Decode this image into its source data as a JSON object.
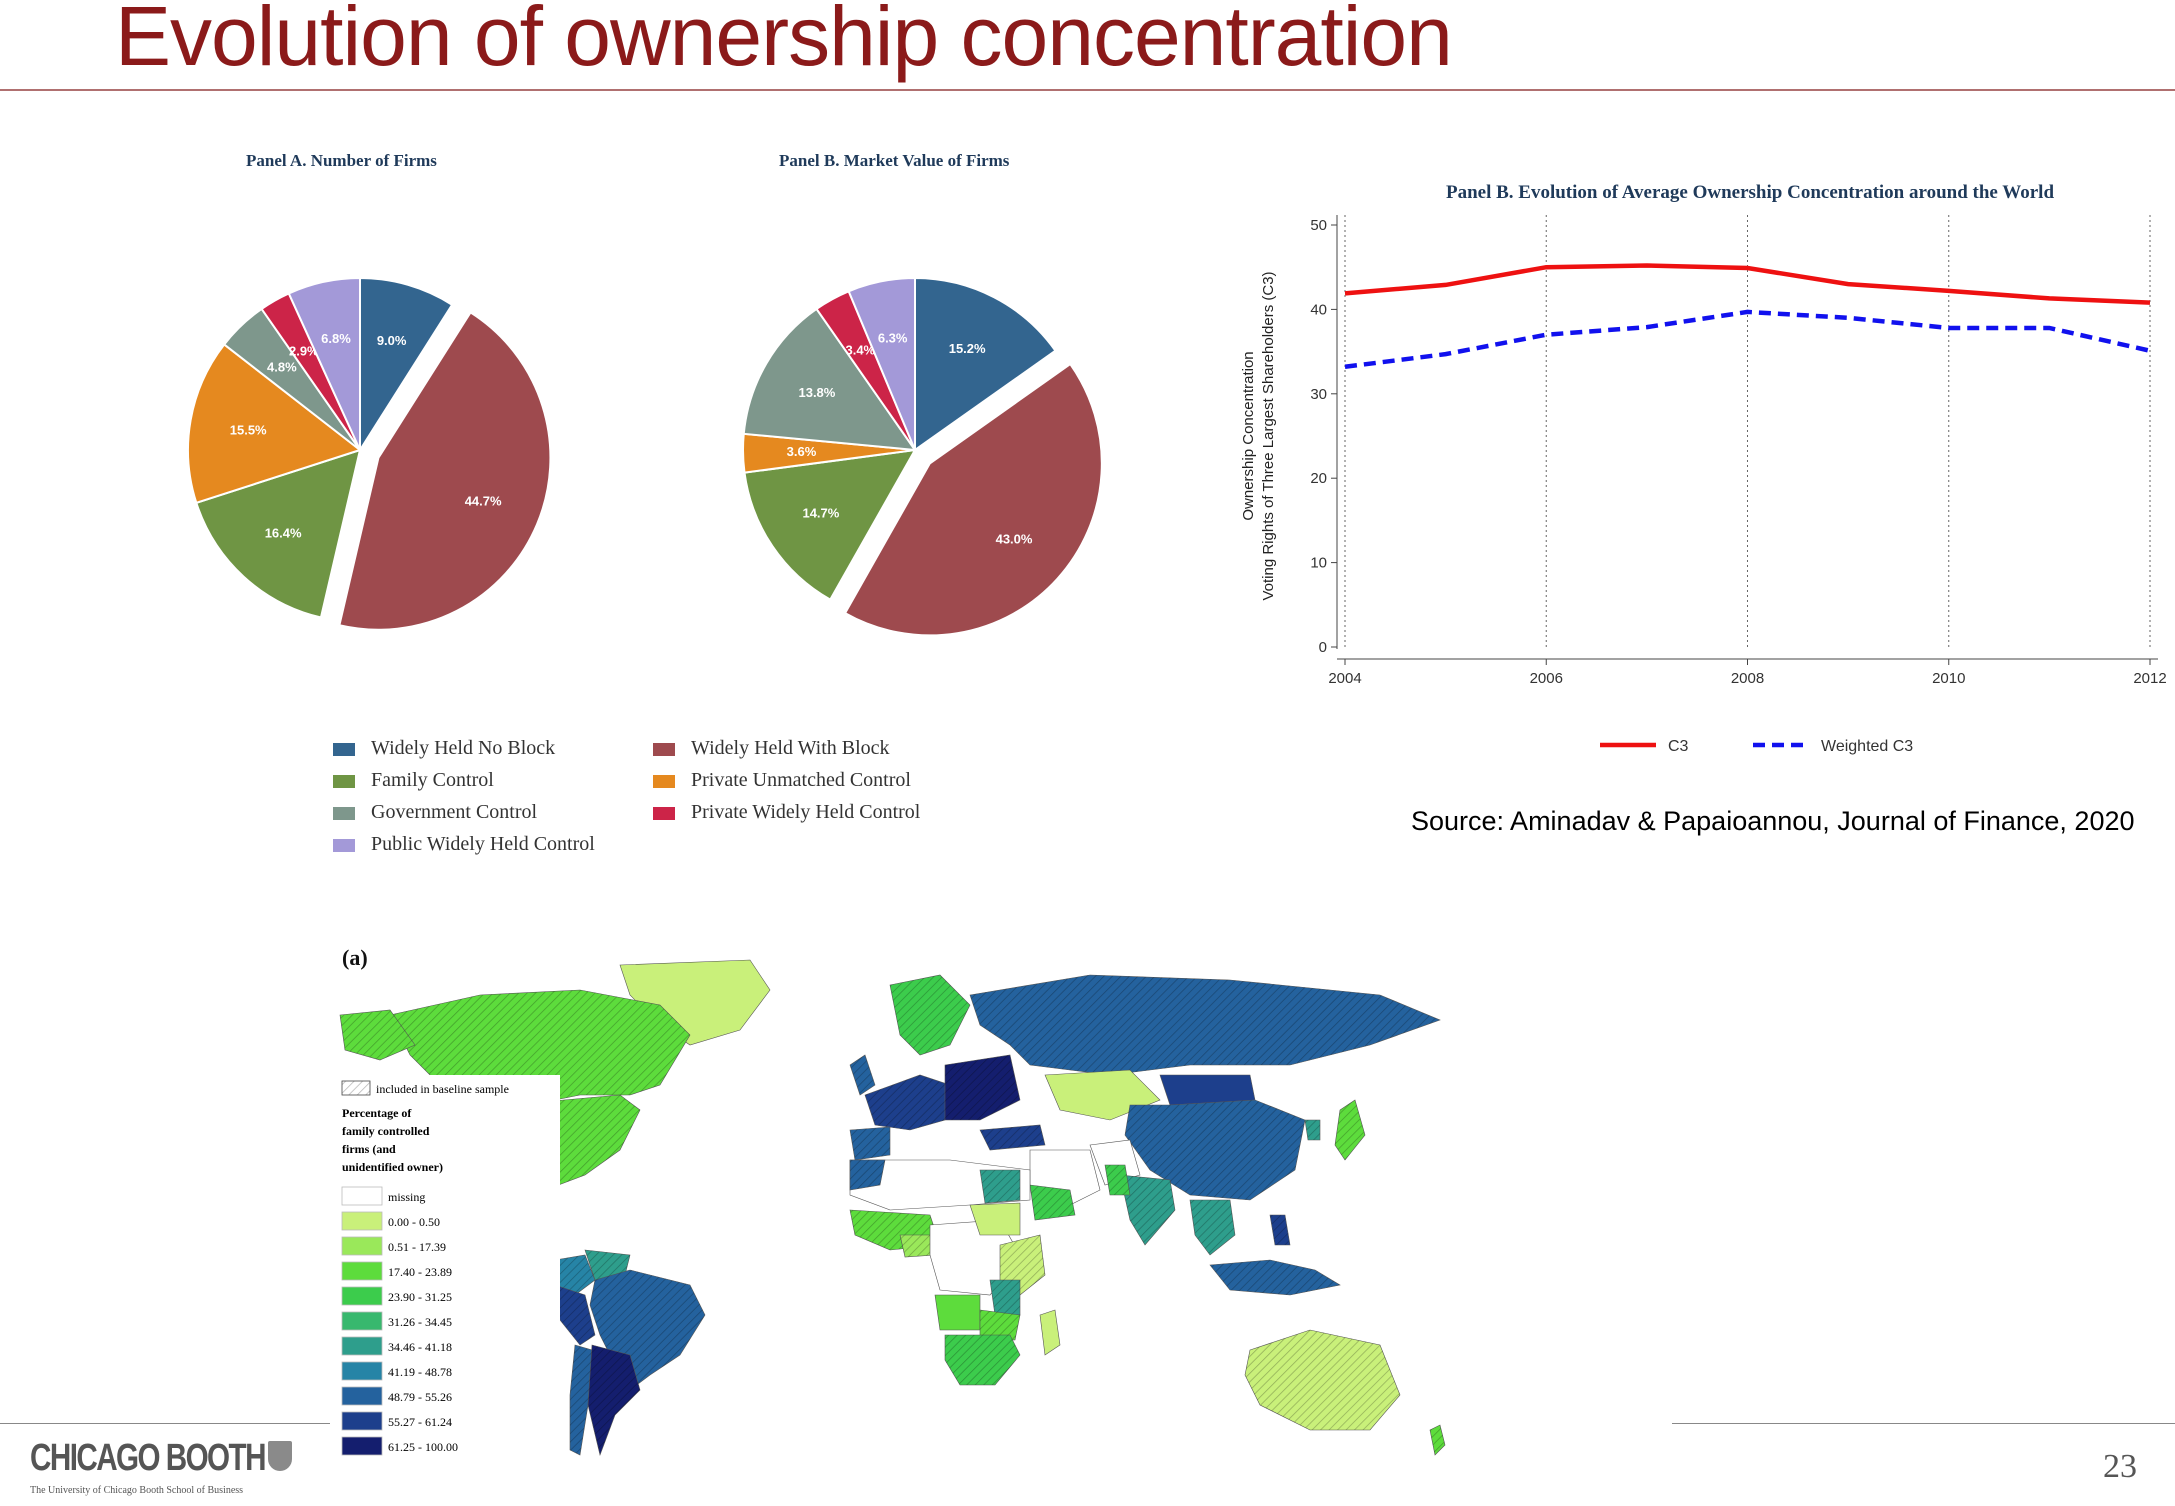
{
  "slide": {
    "title": "Evolution of ownership concentration",
    "source": "Source: Aminadav & Papaioannou, Journal of Finance, 2020",
    "page_number": "23",
    "logo_text": "CHICAGO BOOTH",
    "logo_subtitle": "The University of Chicago Booth School of Business"
  },
  "colors": {
    "title": "#8b1a1a",
    "widely_held_no_block": "#33658f",
    "widely_held_with_block": "#9e4a4e",
    "family_control": "#6f9544",
    "private_unmatched_control": "#e5891f",
    "government_control": "#7e978c",
    "private_widely_held_control": "#cc2448",
    "public_widely_held_control": "#a399d8",
    "c3": "#ee1111",
    "weighted_c3": "#1111ee"
  },
  "chart_data": [
    {
      "type": "pie",
      "title": "Panel A. Number of Firms",
      "slices": [
        {
          "category": "Widely Held No Block",
          "value": 9.0,
          "label": "9.0%"
        },
        {
          "category": "Widely Held With Block",
          "value": 44.7,
          "label": "44.7%"
        },
        {
          "category": "Family Control",
          "value": 16.4,
          "label": "16.4%"
        },
        {
          "category": "Private Unmatched Control",
          "value": 15.5,
          "label": "15.5%"
        },
        {
          "category": "Government Control",
          "value": 4.8,
          "label": "4.8%"
        },
        {
          "category": "Private Widely Held Control",
          "value": 2.9,
          "label": "2.9%"
        },
        {
          "category": "Public Widely Held Control",
          "value": 6.8,
          "label": "6.8%"
        }
      ]
    },
    {
      "type": "pie",
      "title": "Panel B. Market Value of Firms",
      "slices": [
        {
          "category": "Widely Held No Block",
          "value": 15.2,
          "label": "15.2%"
        },
        {
          "category": "Widely Held With Block",
          "value": 43.0,
          "label": "43.0%"
        },
        {
          "category": "Family Control",
          "value": 14.7,
          "label": "14.7%"
        },
        {
          "category": "Private Unmatched Control",
          "value": 3.6,
          "label": "3.6%"
        },
        {
          "category": "Government Control",
          "value": 13.8,
          "label": "13.8%"
        },
        {
          "category": "Private Widely Held Control",
          "value": 3.4,
          "label": "3.4%"
        },
        {
          "category": "Public Widely Held Control",
          "value": 6.3,
          "label": "6.3%"
        }
      ]
    },
    {
      "type": "line",
      "title": "Panel B. Evolution of Average Ownership Concentration around the World",
      "ylabel_line1": "Ownership Concentration",
      "ylabel_line2": "Voting Rights of Three Largest Shareholders (C3)",
      "xlabel": "",
      "x": [
        2004,
        2005,
        2006,
        2007,
        2008,
        2009,
        2010,
        2011,
        2012
      ],
      "xlim": [
        2004,
        2012
      ],
      "ylim": [
        0,
        50
      ],
      "xticks": [
        "2004",
        "2006",
        "2008",
        "2010",
        "2012"
      ],
      "yticks": [
        "0",
        "10",
        "20",
        "30",
        "40",
        "50"
      ],
      "series": [
        {
          "name": "C3",
          "values": [
            41.9,
            42.9,
            45.0,
            45.2,
            44.9,
            43.0,
            42.2,
            41.3,
            40.8
          ]
        },
        {
          "name": "Weighted C3",
          "values": [
            33.2,
            34.7,
            37.0,
            37.9,
            39.7,
            39.0,
            37.8,
            37.8,
            35.1
          ]
        }
      ],
      "legend_position": "bottom"
    }
  ],
  "pie_legend": [
    {
      "label": "Widely Held No Block",
      "color": "#33658f"
    },
    {
      "label": "Widely Held With Block",
      "color": "#9e4a4e"
    },
    {
      "label": "Family Control",
      "color": "#6f9544"
    },
    {
      "label": "Private Unmatched Control",
      "color": "#e5891f"
    },
    {
      "label": "Government Control",
      "color": "#7e978c"
    },
    {
      "label": "Private Widely Held Control",
      "color": "#cc2448"
    },
    {
      "label": "Public Widely Held Control",
      "color": "#a399d8"
    }
  ],
  "map": {
    "panel_label": "(a)",
    "hatch_label": "included in baseline sample",
    "legend_title": [
      "Percentage of",
      "family controlled",
      "firms (and",
      "unidentified owner)"
    ],
    "classes": [
      {
        "label": "missing",
        "color": "#ffffff"
      },
      {
        "label": "0.00 - 0.50",
        "color": "#c9f07a"
      },
      {
        "label": "0.51 - 17.39",
        "color": "#9ae85a"
      },
      {
        "label": "17.40 - 23.89",
        "color": "#5ddc3c"
      },
      {
        "label": "23.90 - 31.25",
        "color": "#3ccc4c"
      },
      {
        "label": "31.26 - 34.45",
        "color": "#38b86e"
      },
      {
        "label": "34.46 - 41.18",
        "color": "#2e9e8c"
      },
      {
        "label": "41.19 - 48.78",
        "color": "#2684a6"
      },
      {
        "label": "48.79 - 55.26",
        "color": "#24629e"
      },
      {
        "label": "55.27 - 61.24",
        "color": "#1d3f8c"
      },
      {
        "label": "61.25 - 100.00",
        "color": "#141e6e"
      }
    ]
  }
}
